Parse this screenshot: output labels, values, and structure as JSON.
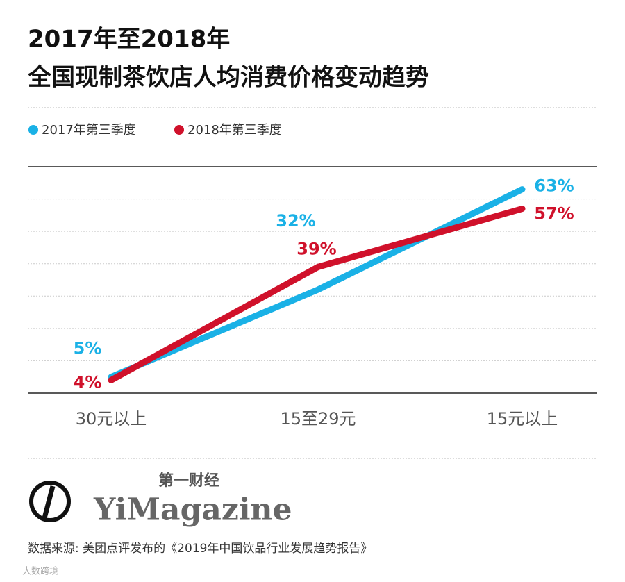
{
  "chart_data": {
    "type": "line",
    "title": "2017年至2018年",
    "subtitle": "全国现制茶饮店人均消费价格变动趋势",
    "categories": [
      "30元以上",
      "15至29元",
      "15元以上"
    ],
    "series": [
      {
        "name": "2017年第三季度",
        "color": "#1ab1e6",
        "values": [
          5,
          32,
          63
        ],
        "value_labels": [
          "5%",
          "32%",
          "63%"
        ]
      },
      {
        "name": "2018年第三季度",
        "color": "#d0112b",
        "values": [
          4,
          39,
          57
        ],
        "value_labels": [
          "4%",
          "39%",
          "57%"
        ]
      }
    ],
    "ylim": [
      0,
      70
    ],
    "yticks": [
      0,
      10,
      20,
      30,
      40,
      50,
      60,
      70
    ],
    "grid": true
  },
  "brand": {
    "name_cn": "第一财经",
    "name_en": "YiMagazine"
  },
  "source": "数据来源: 美团点评发布的《2019年中国饮品行业发展趋势报告》",
  "watermark": "大数跨境"
}
